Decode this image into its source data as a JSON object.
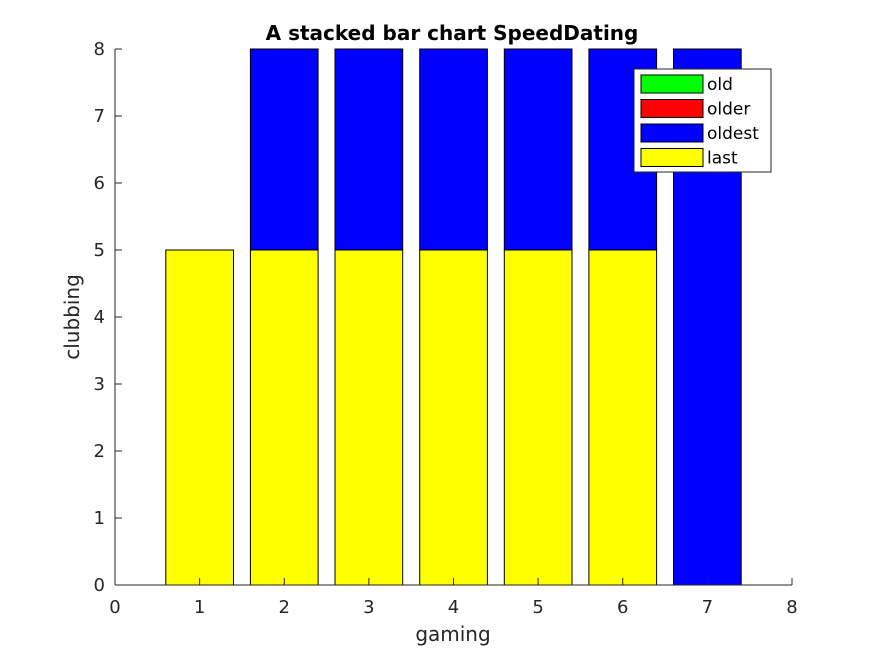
{
  "chart_data": {
    "type": "bar",
    "stacked": true,
    "title": "A stacked bar chart SpeedDating",
    "xlabel": "gaming",
    "ylabel": "clubbing",
    "xlim": [
      0,
      8
    ],
    "ylim": [
      0,
      8
    ],
    "xticks": [
      "0",
      "1",
      "2",
      "3",
      "4",
      "5",
      "6",
      "7",
      "8"
    ],
    "yticks": [
      "0",
      "1",
      "2",
      "3",
      "4",
      "5",
      "6",
      "7",
      "8"
    ],
    "categories": [
      1,
      2,
      3,
      4,
      5,
      6,
      7
    ],
    "series": [
      {
        "name": "old",
        "color": "#00ff00",
        "values": [
          0,
          0,
          0,
          0,
          0,
          0,
          0
        ]
      },
      {
        "name": "older",
        "color": "#ff0000",
        "values": [
          0,
          0,
          0,
          0,
          0,
          0,
          0
        ]
      },
      {
        "name": "oldest",
        "color": "#0000ff",
        "values": [
          0,
          3,
          3,
          3,
          3,
          3,
          8
        ]
      },
      {
        "name": "last",
        "color": "#ffff00",
        "values": [
          5,
          5,
          5,
          5,
          5,
          5,
          0
        ]
      }
    ],
    "stack_order": [
      "last",
      "oldest",
      "older",
      "old"
    ],
    "grid": false,
    "legend_position": "top-right"
  }
}
